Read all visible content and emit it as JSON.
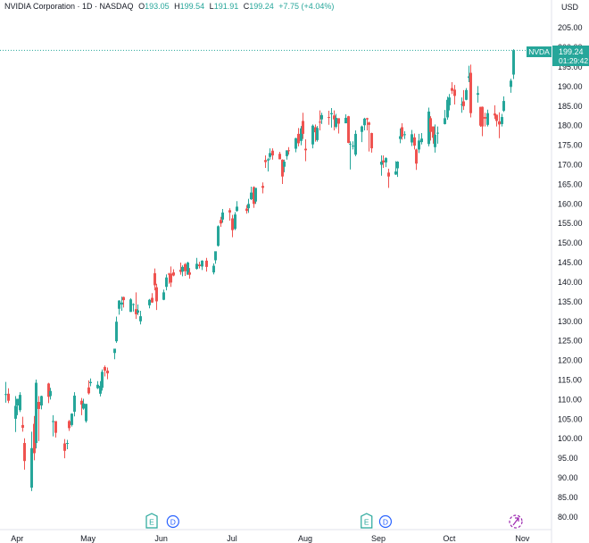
{
  "header": {
    "title": "NVIDIA Corporation · 1D · NASDAQ",
    "open_label": "O",
    "open": "193.05",
    "high_label": "H",
    "high": "199.54",
    "low_label": "L",
    "low": "191.91",
    "close_label": "C",
    "close": "199.24",
    "change": "+7.75 (+4.04%)"
  },
  "price_badge": {
    "symbol": "NVDA",
    "price": "199.24",
    "countdown": "01:29:42"
  },
  "markers": [
    {
      "x": "2025-05-28",
      "label": "E"
    },
    {
      "x": "2025-06-06",
      "label": "D"
    },
    {
      "x": "2025-08-27",
      "label": "E"
    },
    {
      "x": "2025-09-04",
      "label": "D"
    }
  ],
  "colors": {
    "up": "#26a69a",
    "down": "#ef5350",
    "accent": "#2962ff",
    "marker_e": "#26a69a",
    "marker_d": "#2962ff",
    "badge_bg": "#26a69a",
    "split_icon": "#9c27b0"
  },
  "chart_data": {
    "type": "candlestick",
    "xaxis": {
      "type": "date",
      "range": [
        "2025-03-27",
        "2025-11-02"
      ],
      "ticks": [
        {
          "x": "2025-04-01",
          "label": "Apr"
        },
        {
          "x": "2025-05-01",
          "label": "May"
        },
        {
          "x": "2025-06-01",
          "label": "Jun"
        },
        {
          "x": "2025-07-01",
          "label": "Jul"
        },
        {
          "x": "2025-08-01",
          "label": "Aug"
        },
        {
          "x": "2025-09-01",
          "label": "Sep"
        },
        {
          "x": "2025-10-01",
          "label": "Oct"
        },
        {
          "x": "2025-11-01",
          "label": "Nov"
        }
      ]
    },
    "yaxis": {
      "unit": "USD",
      "range": [
        77,
        208
      ],
      "ticks": [
        "80.00",
        "85.00",
        "90.00",
        "95.00",
        "100.00",
        "105.00",
        "110.00",
        "115.00",
        "120.00",
        "125.00",
        "130.00",
        "135.00",
        "140.00",
        "145.00",
        "150.00",
        "155.00",
        "160.00",
        "165.00",
        "170.00",
        "175.00",
        "180.00",
        "185.00",
        "190.00",
        "195.00",
        "200.00",
        "205.00"
      ]
    },
    "last_price": 199.24,
    "candles": [
      [
        "2025-03-27",
        111.3,
        114.5,
        109.2,
        111.4
      ],
      [
        "2025-03-28",
        111.5,
        112.9,
        109.1,
        109.7
      ],
      [
        "2025-03-31",
        105.1,
        110.9,
        101.7,
        108.4
      ],
      [
        "2025-04-01",
        108.5,
        110.2,
        106.0,
        110.2
      ],
      [
        "2025-04-02",
        107.3,
        111.9,
        106.8,
        111.2
      ],
      [
        "2025-04-03",
        103.5,
        105.6,
        101.8,
        102.8
      ],
      [
        "2025-04-04",
        98.9,
        100.1,
        92.1,
        94.3
      ],
      [
        "2025-04-07",
        87.5,
        101.8,
        86.6,
        97.6
      ],
      [
        "2025-04-08",
        103.8,
        105.8,
        94.5,
        96.3
      ],
      [
        "2025-04-09",
        98.9,
        115.1,
        97.5,
        114.3
      ],
      [
        "2025-04-10",
        109.4,
        110.9,
        99.4,
        107.6
      ],
      [
        "2025-04-11",
        108.5,
        111.0,
        107.5,
        110.9
      ],
      [
        "2025-04-14",
        114.1,
        114.3,
        109.1,
        110.7
      ],
      [
        "2025-04-15",
        110.9,
        113.0,
        110.0,
        112.2
      ],
      [
        "2025-04-16",
        104.5,
        106.0,
        100.6,
        104.5
      ],
      [
        "2025-04-17",
        104.5,
        104.5,
        100.3,
        101.5
      ],
      [
        "2025-04-21",
        98.8,
        99.9,
        95.0,
        96.9
      ],
      [
        "2025-04-22",
        98.8,
        99.7,
        97.3,
        98.9
      ],
      [
        "2025-04-23",
        104.5,
        104.8,
        102.0,
        102.7
      ],
      [
        "2025-04-24",
        103.5,
        106.5,
        103.1,
        106.4
      ],
      [
        "2025-04-25",
        106.9,
        111.9,
        105.7,
        111.0
      ],
      [
        "2025-04-28",
        109.7,
        110.4,
        106.0,
        108.7
      ],
      [
        "2025-04-29",
        107.7,
        110.2,
        107.4,
        109.0
      ],
      [
        "2025-04-30",
        104.5,
        108.9,
        104.1,
        108.9
      ],
      [
        "2025-05-01",
        113.1,
        114.9,
        111.3,
        111.6
      ],
      [
        "2025-05-02",
        114.2,
        115.4,
        113.4,
        114.5
      ],
      [
        "2025-05-05",
        112.9,
        114.7,
        112.7,
        113.8
      ],
      [
        "2025-05-06",
        111.5,
        114.7,
        110.8,
        113.5
      ],
      [
        "2025-05-07",
        113.0,
        117.7,
        112.3,
        117.1
      ],
      [
        "2025-05-08",
        118.3,
        118.7,
        115.9,
        117.4
      ],
      [
        "2025-05-09",
        117.4,
        118.2,
        115.2,
        116.7
      ],
      [
        "2025-05-12",
        121.9,
        123.0,
        120.3,
        123.0
      ],
      [
        "2025-05-13",
        124.9,
        131.2,
        124.5,
        129.9
      ],
      [
        "2025-05-14",
        133.2,
        135.4,
        131.7,
        135.3
      ],
      [
        "2025-05-15",
        134.3,
        136.3,
        132.7,
        134.8
      ],
      [
        "2025-05-16",
        136.2,
        136.3,
        133.5,
        135.4
      ],
      [
        "2025-05-19",
        132.4,
        135.9,
        132.4,
        135.6
      ],
      [
        "2025-05-20",
        134.3,
        134.6,
        132.5,
        134.4
      ],
      [
        "2025-05-21",
        133.1,
        137.4,
        130.6,
        131.8
      ],
      [
        "2025-05-22",
        132.2,
        134.3,
        131.6,
        132.8
      ],
      [
        "2025-05-23",
        130.0,
        132.7,
        129.2,
        131.3
      ],
      [
        "2025-05-27",
        134.1,
        135.7,
        133.3,
        135.5
      ],
      [
        "2025-05-28",
        136.0,
        137.2,
        134.7,
        134.8
      ],
      [
        "2025-05-29",
        142.3,
        143.5,
        137.9,
        139.2
      ],
      [
        "2025-05-30",
        138.7,
        139.6,
        132.9,
        135.1
      ],
      [
        "2025-06-02",
        135.5,
        138.1,
        135.4,
        137.4
      ],
      [
        "2025-06-03",
        138.8,
        142.0,
        137.9,
        141.2
      ],
      [
        "2025-06-04",
        142.2,
        142.4,
        139.6,
        141.9
      ],
      [
        "2025-06-05",
        142.2,
        144.0,
        138.8,
        139.9
      ],
      [
        "2025-06-06",
        142.5,
        143.3,
        141.5,
        141.7
      ],
      [
        "2025-06-09",
        143.2,
        145.0,
        141.9,
        142.6
      ],
      [
        "2025-06-10",
        142.7,
        144.3,
        141.5,
        143.9
      ],
      [
        "2025-06-11",
        144.6,
        144.9,
        141.6,
        142.8
      ],
      [
        "2025-06-12",
        141.9,
        145.2,
        141.9,
        145.0
      ],
      [
        "2025-06-13",
        142.5,
        143.6,
        140.9,
        141.9
      ],
      [
        "2025-06-16",
        143.4,
        146.2,
        143.2,
        144.7
      ],
      [
        "2025-06-17",
        144.5,
        145.2,
        143.5,
        144.1
      ],
      [
        "2025-06-18",
        144.0,
        145.6,
        143.1,
        145.5
      ],
      [
        "2025-06-20",
        145.5,
        146.2,
        142.7,
        143.9
      ],
      [
        "2025-06-23",
        142.5,
        144.8,
        142.0,
        144.2
      ],
      [
        "2025-06-24",
        145.6,
        147.2,
        144.7,
        147.9
      ],
      [
        "2025-06-25",
        149.3,
        154.5,
        149.1,
        154.3
      ],
      [
        "2025-06-26",
        155.9,
        156.7,
        154.1,
        155.0
      ],
      [
        "2025-06-27",
        156.0,
        158.7,
        155.2,
        157.8
      ],
      [
        "2025-06-30",
        158.4,
        158.9,
        155.7,
        157.8
      ],
      [
        "2025-07-01",
        156.3,
        157.2,
        151.5,
        153.3
      ],
      [
        "2025-07-02",
        153.6,
        157.9,
        153.3,
        157.3
      ],
      [
        "2025-07-03",
        158.2,
        160.7,
        158.0,
        159.3
      ],
      [
        "2025-07-07",
        158.8,
        159.7,
        157.5,
        158.2
      ],
      [
        "2025-07-08",
        158.9,
        161.3,
        157.7,
        160.0
      ],
      [
        "2025-07-09",
        161.2,
        164.4,
        161.0,
        162.9
      ],
      [
        "2025-07-10",
        164.3,
        164.5,
        159.0,
        160.0
      ],
      [
        "2025-07-11",
        160.6,
        164.0,
        160.0,
        164.1
      ],
      [
        "2025-07-14",
        164.6,
        165.5,
        162.7,
        164.1
      ],
      [
        "2025-07-15",
        171.2,
        172.4,
        169.2,
        170.7
      ],
      [
        "2025-07-16",
        171.1,
        171.8,
        168.3,
        171.4
      ],
      [
        "2025-07-17",
        172.0,
        174.2,
        171.3,
        173.0
      ],
      [
        "2025-07-18",
        173.6,
        174.2,
        171.3,
        172.4
      ],
      [
        "2025-07-21",
        172.8,
        173.3,
        171.4,
        171.4
      ],
      [
        "2025-07-22",
        171.3,
        171.4,
        165.1,
        167.0
      ],
      [
        "2025-07-23",
        169.5,
        171.3,
        168.1,
        170.8
      ],
      [
        "2025-07-24",
        172.2,
        173.4,
        171.3,
        173.7
      ],
      [
        "2025-07-25",
        173.7,
        174.5,
        172.6,
        173.5
      ],
      [
        "2025-07-28",
        174.1,
        176.9,
        173.2,
        176.8
      ],
      [
        "2025-07-29",
        177.9,
        179.4,
        174.7,
        175.5
      ],
      [
        "2025-07-30",
        176.1,
        179.9,
        175.0,
        179.3
      ],
      [
        "2025-07-31",
        181.2,
        183.3,
        176.6,
        177.9
      ],
      [
        "2025-08-01",
        174.1,
        176.5,
        170.9,
        173.7
      ],
      [
        "2025-08-04",
        175.2,
        180.3,
        174.2,
        180.0
      ],
      [
        "2025-08-05",
        179.6,
        180.3,
        175.9,
        178.3
      ],
      [
        "2025-08-06",
        176.3,
        179.9,
        175.9,
        179.4
      ],
      [
        "2025-08-07",
        181.0,
        183.9,
        178.8,
        180.8
      ],
      [
        "2025-08-08",
        181.6,
        183.3,
        180.4,
        182.7
      ],
      [
        "2025-08-11",
        182.2,
        183.8,
        180.2,
        182.1
      ],
      [
        "2025-08-12",
        182.9,
        184.5,
        179.5,
        183.2
      ],
      [
        "2025-08-13",
        182.6,
        183.9,
        178.8,
        181.6
      ],
      [
        "2025-08-14",
        179.7,
        183.0,
        179.3,
        182.0
      ],
      [
        "2025-08-15",
        181.9,
        181.9,
        178.0,
        180.5
      ],
      [
        "2025-08-18",
        180.6,
        182.9,
        180.6,
        182.0
      ],
      [
        "2025-08-19",
        182.4,
        182.5,
        175.5,
        175.6
      ],
      [
        "2025-08-20",
        175.2,
        176.0,
        168.8,
        175.4
      ],
      [
        "2025-08-21",
        174.8,
        176.0,
        173.9,
        174.9
      ],
      [
        "2025-08-22",
        172.6,
        178.8,
        172.2,
        177.9
      ],
      [
        "2025-08-25",
        178.4,
        180.0,
        175.8,
        179.8
      ],
      [
        "2025-08-26",
        180.1,
        182.0,
        178.8,
        181.8
      ],
      [
        "2025-08-27",
        181.9,
        182.0,
        178.8,
        181.6
      ],
      [
        "2025-08-28",
        180.8,
        181.0,
        173.4,
        180.2
      ],
      [
        "2025-08-29",
        178.1,
        178.2,
        173.1,
        174.2
      ],
      [
        "2025-09-02",
        170.0,
        172.4,
        167.2,
        170.8
      ],
      [
        "2025-09-03",
        171.1,
        172.4,
        169.2,
        170.6
      ],
      [
        "2025-09-04",
        170.6,
        171.9,
        169.4,
        171.7
      ],
      [
        "2025-09-05",
        168.0,
        169.0,
        164.1,
        167.0
      ],
      [
        "2025-09-08",
        167.5,
        170.9,
        167.4,
        168.3
      ],
      [
        "2025-09-09",
        169.1,
        170.9,
        166.9,
        170.8
      ],
      [
        "2025-09-10",
        176.6,
        179.3,
        175.5,
        177.3
      ],
      [
        "2025-09-11",
        179.6,
        180.6,
        176.4,
        177.2
      ],
      [
        "2025-09-12",
        177.8,
        178.6,
        176.6,
        177.8
      ],
      [
        "2025-09-15",
        175.7,
        178.9,
        174.8,
        177.8
      ],
      [
        "2025-09-16",
        177.0,
        178.0,
        173.9,
        174.9
      ],
      [
        "2025-09-17",
        173.9,
        174.1,
        168.7,
        170.3
      ],
      [
        "2025-09-18",
        173.9,
        177.9,
        173.0,
        176.2
      ],
      [
        "2025-09-19",
        175.8,
        178.1,
        175.2,
        176.7
      ],
      [
        "2025-09-22",
        175.3,
        184.6,
        174.7,
        183.6
      ],
      [
        "2025-09-23",
        181.9,
        182.4,
        176.2,
        178.4
      ],
      [
        "2025-09-24",
        179.8,
        179.8,
        175.4,
        176.9
      ],
      [
        "2025-09-25",
        174.5,
        180.3,
        173.1,
        177.7
      ],
      [
        "2025-09-26",
        178.2,
        179.8,
        175.4,
        178.2
      ],
      [
        "2025-09-29",
        180.4,
        184.0,
        180.3,
        181.9
      ],
      [
        "2025-09-30",
        182.1,
        187.4,
        181.5,
        186.6
      ],
      [
        "2025-10-01",
        185.2,
        188.1,
        183.9,
        187.2
      ],
      [
        "2025-10-02",
        189.6,
        191.1,
        188.1,
        188.9
      ],
      [
        "2025-10-03",
        189.2,
        190.4,
        185.4,
        187.6
      ],
      [
        "2025-10-06",
        185.5,
        187.2,
        183.3,
        185.5
      ],
      [
        "2025-10-07",
        186.2,
        189.1,
        184.0,
        185.0
      ],
      [
        "2025-10-08",
        186.6,
        189.6,
        186.5,
        189.1
      ],
      [
        "2025-10-09",
        192.2,
        195.3,
        191.1,
        192.6
      ],
      [
        "2025-10-10",
        193.5,
        195.6,
        182.1,
        183.2
      ],
      [
        "2025-10-13",
        187.9,
        190.1,
        185.9,
        188.3
      ],
      [
        "2025-10-14",
        184.8,
        184.8,
        179.7,
        180.0
      ],
      [
        "2025-10-15",
        184.8,
        184.9,
        177.3,
        179.8
      ],
      [
        "2025-10-16",
        182.2,
        183.3,
        179.8,
        181.8
      ],
      [
        "2025-10-17",
        180.2,
        184.1,
        179.8,
        183.2
      ],
      [
        "2025-10-20",
        183.1,
        185.2,
        181.7,
        182.6
      ],
      [
        "2025-10-21",
        182.8,
        182.8,
        179.8,
        181.2
      ],
      [
        "2025-10-22",
        181.1,
        183.4,
        176.8,
        180.3
      ],
      [
        "2025-10-23",
        180.4,
        183.0,
        179.8,
        182.2
      ],
      [
        "2025-10-24",
        183.8,
        187.5,
        183.5,
        186.3
      ],
      [
        "2025-10-27",
        189.9,
        192.0,
        188.4,
        191.5
      ],
      [
        "2025-10-28",
        193.05,
        199.54,
        191.91,
        199.24
      ]
    ]
  }
}
